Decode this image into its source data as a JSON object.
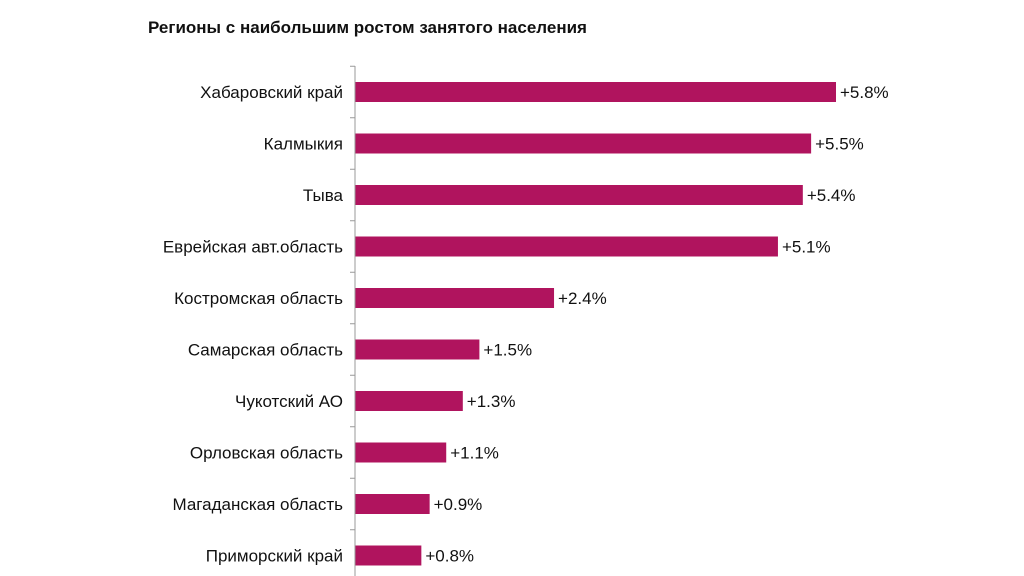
{
  "chart_data": {
    "type": "bar",
    "orientation": "horizontal",
    "title": "Регионы с наибольшим ростом занятого населения",
    "categories": [
      "Хабаровский край",
      "Калмыкия",
      "Тыва",
      "Еврейская авт.область",
      "Костромская область",
      "Самарская область",
      "Чукотский АО",
      "Орловская область",
      "Магаданская область",
      "Приморский край"
    ],
    "values": [
      5.8,
      5.5,
      5.4,
      5.1,
      2.4,
      1.5,
      1.3,
      1.1,
      0.9,
      0.8
    ],
    "value_labels": [
      "+5.8%",
      "+5.5%",
      "+5.4%",
      "+5.1%",
      "+2.4%",
      "+1.5%",
      "+1.3%",
      "+1.1%",
      "+0.9%",
      "+0.8%"
    ],
    "xlim": [
      0,
      5.8
    ],
    "grid": false,
    "bar_color": "#b0145e",
    "axis_color": "#999999"
  }
}
